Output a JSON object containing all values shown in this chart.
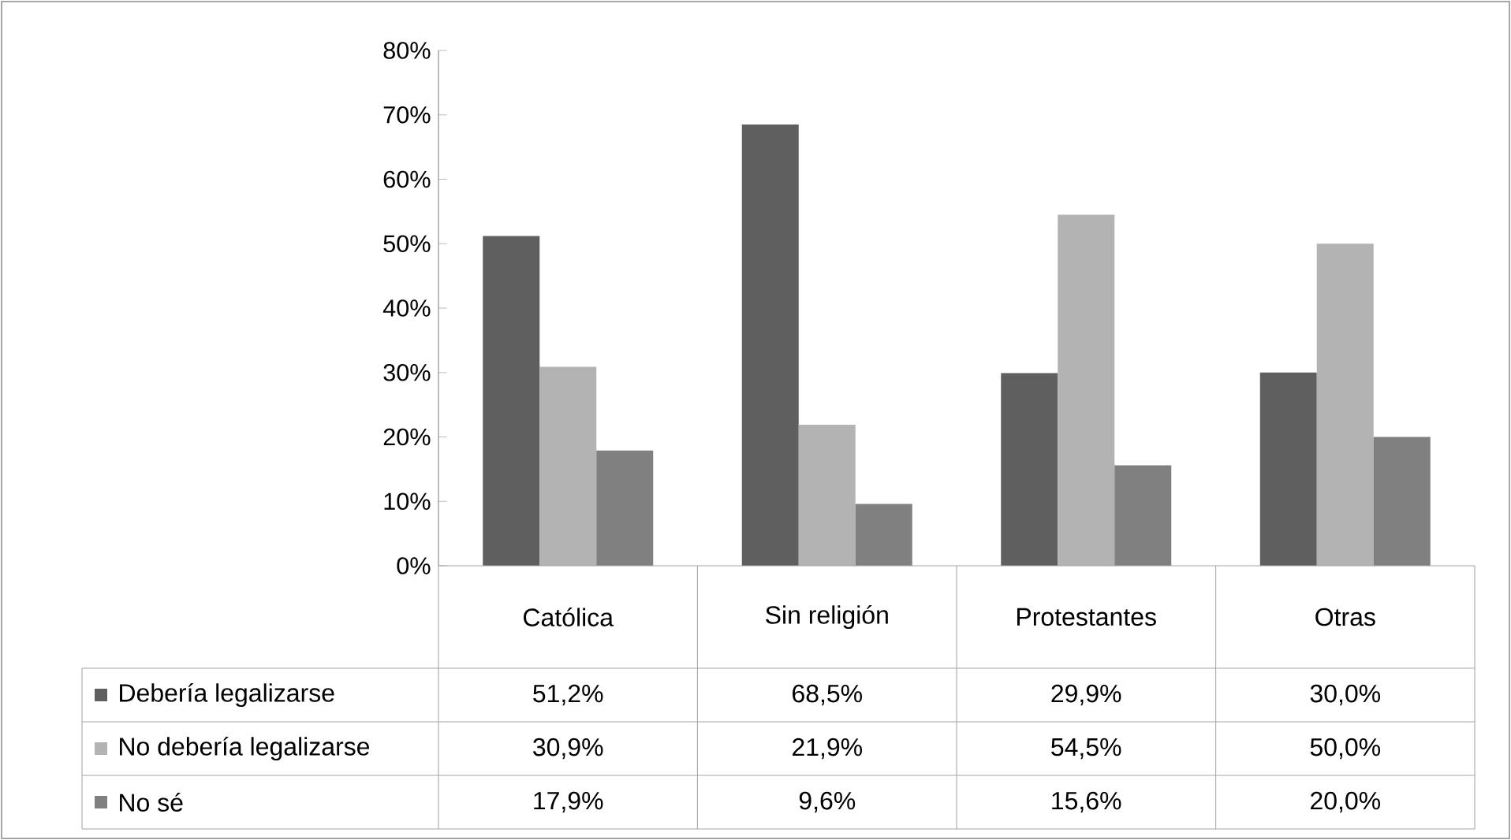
{
  "chart_data": {
    "type": "bar",
    "categories": [
      "Católica",
      "Sin religión",
      "Protestantes",
      "Otras"
    ],
    "series": [
      {
        "name": "Debería legalizarse",
        "color": "#5f5f5f",
        "values": [
          51.2,
          68.5,
          29.9,
          30.0
        ],
        "value_labels": [
          "51,2%",
          "68,5%",
          "29,9%",
          "30,0%"
        ]
      },
      {
        "name": "No debería legalizarse",
        "color": "#b3b3b3",
        "values": [
          30.9,
          21.9,
          54.5,
          50.0
        ],
        "value_labels": [
          "30,9%",
          "21,9%",
          "54,5%",
          "50,0%"
        ]
      },
      {
        "name": "No sé",
        "color": "#808080",
        "values": [
          17.9,
          9.6,
          15.6,
          20.0
        ],
        "value_labels": [
          "17,9%",
          "9,6%",
          "15,6%",
          "20,0%"
        ]
      }
    ],
    "ylim": [
      0,
      80
    ],
    "yticks": [
      {
        "value": 0,
        "label": "0%"
      },
      {
        "value": 10,
        "label": "10%"
      },
      {
        "value": 20,
        "label": "20%"
      },
      {
        "value": 30,
        "label": "30%"
      },
      {
        "value": 40,
        "label": "40%"
      },
      {
        "value": 50,
        "label": "50%"
      },
      {
        "value": 60,
        "label": "60%"
      },
      {
        "value": 70,
        "label": "70%"
      },
      {
        "value": 80,
        "label": "80%"
      }
    ],
    "grid": false,
    "legend": "bottom left"
  }
}
